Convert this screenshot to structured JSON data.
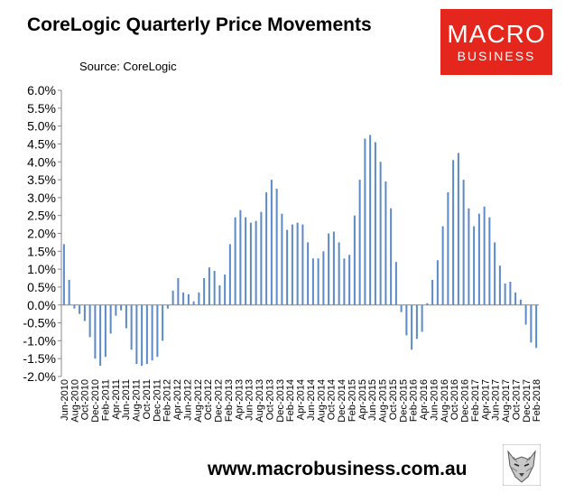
{
  "title": "CoreLogic Quarterly Price Movements",
  "source": "Source: CoreLogic",
  "logo": {
    "line1": "MACRO",
    "line2": "BUSINESS",
    "color": "#e4261c"
  },
  "footer": "www.macrobusiness.com.au",
  "chart_data": {
    "type": "bar",
    "title": "CoreLogic Quarterly Price Movements",
    "xlabel": "",
    "ylabel": "",
    "ylim": [
      -2.0,
      6.0
    ],
    "yticks": [
      "6.0%",
      "5.5%",
      "5.0%",
      "4.5%",
      "4.0%",
      "3.5%",
      "3.0%",
      "2.5%",
      "2.0%",
      "1.5%",
      "1.0%",
      "0.5%",
      "0.0%",
      "-0.5%",
      "-1.0%",
      "-1.5%",
      "-2.0%"
    ],
    "xtick_labels": [
      "Jun-2010",
      "Aug-2010",
      "Oct-2010",
      "Dec-2010",
      "Feb-2011",
      "Apr-2011",
      "Jun-2011",
      "Aug-2011",
      "Oct-2011",
      "Dec-2011",
      "Feb-2012",
      "Apr-2012",
      "Jun-2012",
      "Aug-2012",
      "Oct-2012",
      "Dec-2012",
      "Feb-2013",
      "Apr-2013",
      "Jun-2013",
      "Aug-2013",
      "Oct-2013",
      "Dec-2013",
      "Feb-2014",
      "Apr-2014",
      "Jun-2014",
      "Aug-2014",
      "Oct-2014",
      "Dec-2014",
      "Feb-2015",
      "Apr-2015",
      "Jun-2015",
      "Aug-2015",
      "Oct-2015",
      "Dec-2015",
      "Feb-2016",
      "Apr-2016",
      "Jun-2016",
      "Aug-2016",
      "Oct-2016",
      "Dec-2016",
      "Feb-2017",
      "Apr-2017",
      "Jun-2017",
      "Aug-2017",
      "Oct-2017",
      "Dec-2017",
      "Feb-2018"
    ],
    "bar_color": "#5b8ac6",
    "values": [
      1.7,
      0.7,
      -0.1,
      -0.25,
      -0.45,
      -0.9,
      -1.5,
      -1.7,
      -1.45,
      -0.8,
      -0.3,
      -0.15,
      -0.65,
      -1.25,
      -1.65,
      -1.7,
      -1.65,
      -1.55,
      -1.45,
      -1.0,
      -0.1,
      0.4,
      0.75,
      0.35,
      0.3,
      0.1,
      0.35,
      0.75,
      1.05,
      0.95,
      0.55,
      0.85,
      1.7,
      2.45,
      2.65,
      2.45,
      2.3,
      2.35,
      2.6,
      3.15,
      3.5,
      3.25,
      2.55,
      2.1,
      2.25,
      2.3,
      2.25,
      1.75,
      1.3,
      1.3,
      1.5,
      2.0,
      2.05,
      1.75,
      1.3,
      1.4,
      2.5,
      3.5,
      4.65,
      4.75,
      4.55,
      4.0,
      3.45,
      2.7,
      1.2,
      -0.2,
      -0.85,
      -1.25,
      -0.95,
      -0.75,
      0.05,
      0.7,
      1.25,
      2.2,
      3.15,
      4.05,
      4.25,
      3.5,
      2.7,
      2.2,
      2.55,
      2.75,
      2.45,
      1.75,
      1.1,
      0.6,
      0.65,
      0.35,
      0.15,
      -0.55,
      -1.05,
      -1.2
    ]
  }
}
